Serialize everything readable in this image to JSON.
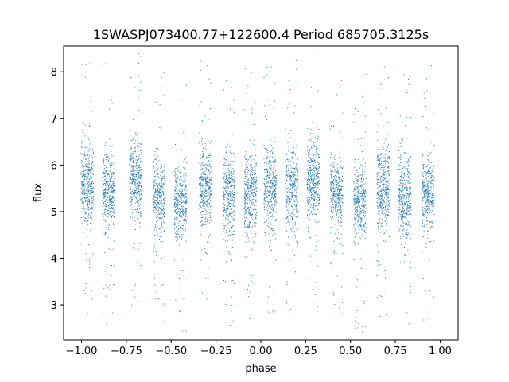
{
  "chart_data": {
    "type": "scatter",
    "title": "1SWASPJ073400.77+122600.4 Period 685705.3125s",
    "xlabel": "phase",
    "ylabel": "flux",
    "xlim": [
      -1.1,
      1.1
    ],
    "ylim": [
      2.25,
      8.55
    ],
    "xticks": [
      -1.0,
      -0.75,
      -0.5,
      -0.25,
      0.0,
      0.25,
      0.5,
      0.75,
      1.0
    ],
    "xtick_labels": [
      "−1.00",
      "−0.75",
      "−0.50",
      "−0.25",
      "0.00",
      "0.25",
      "0.50",
      "0.75",
      "1.00"
    ],
    "yticks": [
      3,
      4,
      5,
      6,
      7,
      8
    ],
    "ytick_labels": [
      "3",
      "4",
      "5",
      "6",
      "7",
      "8"
    ],
    "grid": false,
    "point_color": "#1f77b4",
    "series": [
      {
        "points_description": "dense vertical clusters of points spanning phase -1 to 1, flux centered near 5.4",
        "clusters": [
          {
            "phase": -0.97,
            "center": 5.6,
            "spread": 0.45
          },
          {
            "phase": -0.85,
            "center": 5.4,
            "spread": 0.4
          },
          {
            "phase": -0.7,
            "center": 5.7,
            "spread": 0.45
          },
          {
            "phase": -0.57,
            "center": 5.3,
            "spread": 0.4
          },
          {
            "phase": -0.45,
            "center": 5.2,
            "spread": 0.4
          },
          {
            "phase": -0.31,
            "center": 5.5,
            "spread": 0.45
          },
          {
            "phase": -0.18,
            "center": 5.3,
            "spread": 0.45
          },
          {
            "phase": -0.06,
            "center": 5.4,
            "spread": 0.4
          },
          {
            "phase": 0.05,
            "center": 5.5,
            "spread": 0.4
          },
          {
            "phase": 0.17,
            "center": 5.5,
            "spread": 0.45
          },
          {
            "phase": 0.29,
            "center": 5.7,
            "spread": 0.45
          },
          {
            "phase": 0.42,
            "center": 5.4,
            "spread": 0.4
          },
          {
            "phase": 0.55,
            "center": 5.2,
            "spread": 0.4
          },
          {
            "phase": 0.68,
            "center": 5.5,
            "spread": 0.45
          },
          {
            "phase": 0.8,
            "center": 5.4,
            "spread": 0.45
          },
          {
            "phase": 0.93,
            "center": 5.4,
            "spread": 0.4
          }
        ]
      }
    ]
  }
}
